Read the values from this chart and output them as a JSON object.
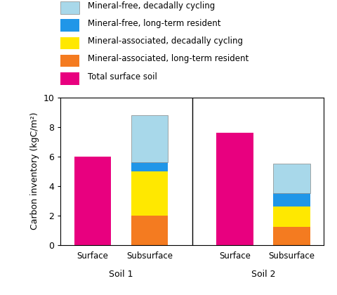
{
  "soil1_surface": 6.0,
  "soil1_subsurface": {
    "mineral_assoc_longterm": 2.0,
    "mineral_assoc_decadal": 3.0,
    "mineral_free_longterm": 0.6,
    "mineral_free_decadal": 3.2
  },
  "soil2_surface": 7.6,
  "soil2_subsurface": {
    "mineral_assoc_longterm": 1.2,
    "mineral_assoc_decadal": 1.4,
    "mineral_free_longterm": 0.9,
    "mineral_free_decadal": 2.0
  },
  "colors": {
    "total_surface": "#E8007F",
    "mineral_assoc_longterm": "#F47B20",
    "mineral_assoc_decadal": "#FFE800",
    "mineral_free_longterm": "#2096E8",
    "mineral_free_decadal": "#A8D8EA"
  },
  "legend_labels": [
    "Mineral-free, decadally cycling",
    "Mineral-free, long-term resident",
    "Mineral-associated, decadally cycling",
    "Mineral-associated, long-term resident",
    "Total surface soil"
  ],
  "legend_colors": [
    "#A8D8EA",
    "#2096E8",
    "#FFE800",
    "#F47B20",
    "#E8007F"
  ],
  "ylabel": "Carbon inventory (kgC/m²)",
  "ylim": [
    0,
    10
  ],
  "yticks": [
    0,
    2,
    4,
    6,
    8,
    10
  ],
  "bar_width": 0.52,
  "positions": [
    0.6,
    1.4,
    2.6,
    3.4
  ],
  "divider_x": 2.0,
  "xlim": [
    0.15,
    3.85
  ]
}
